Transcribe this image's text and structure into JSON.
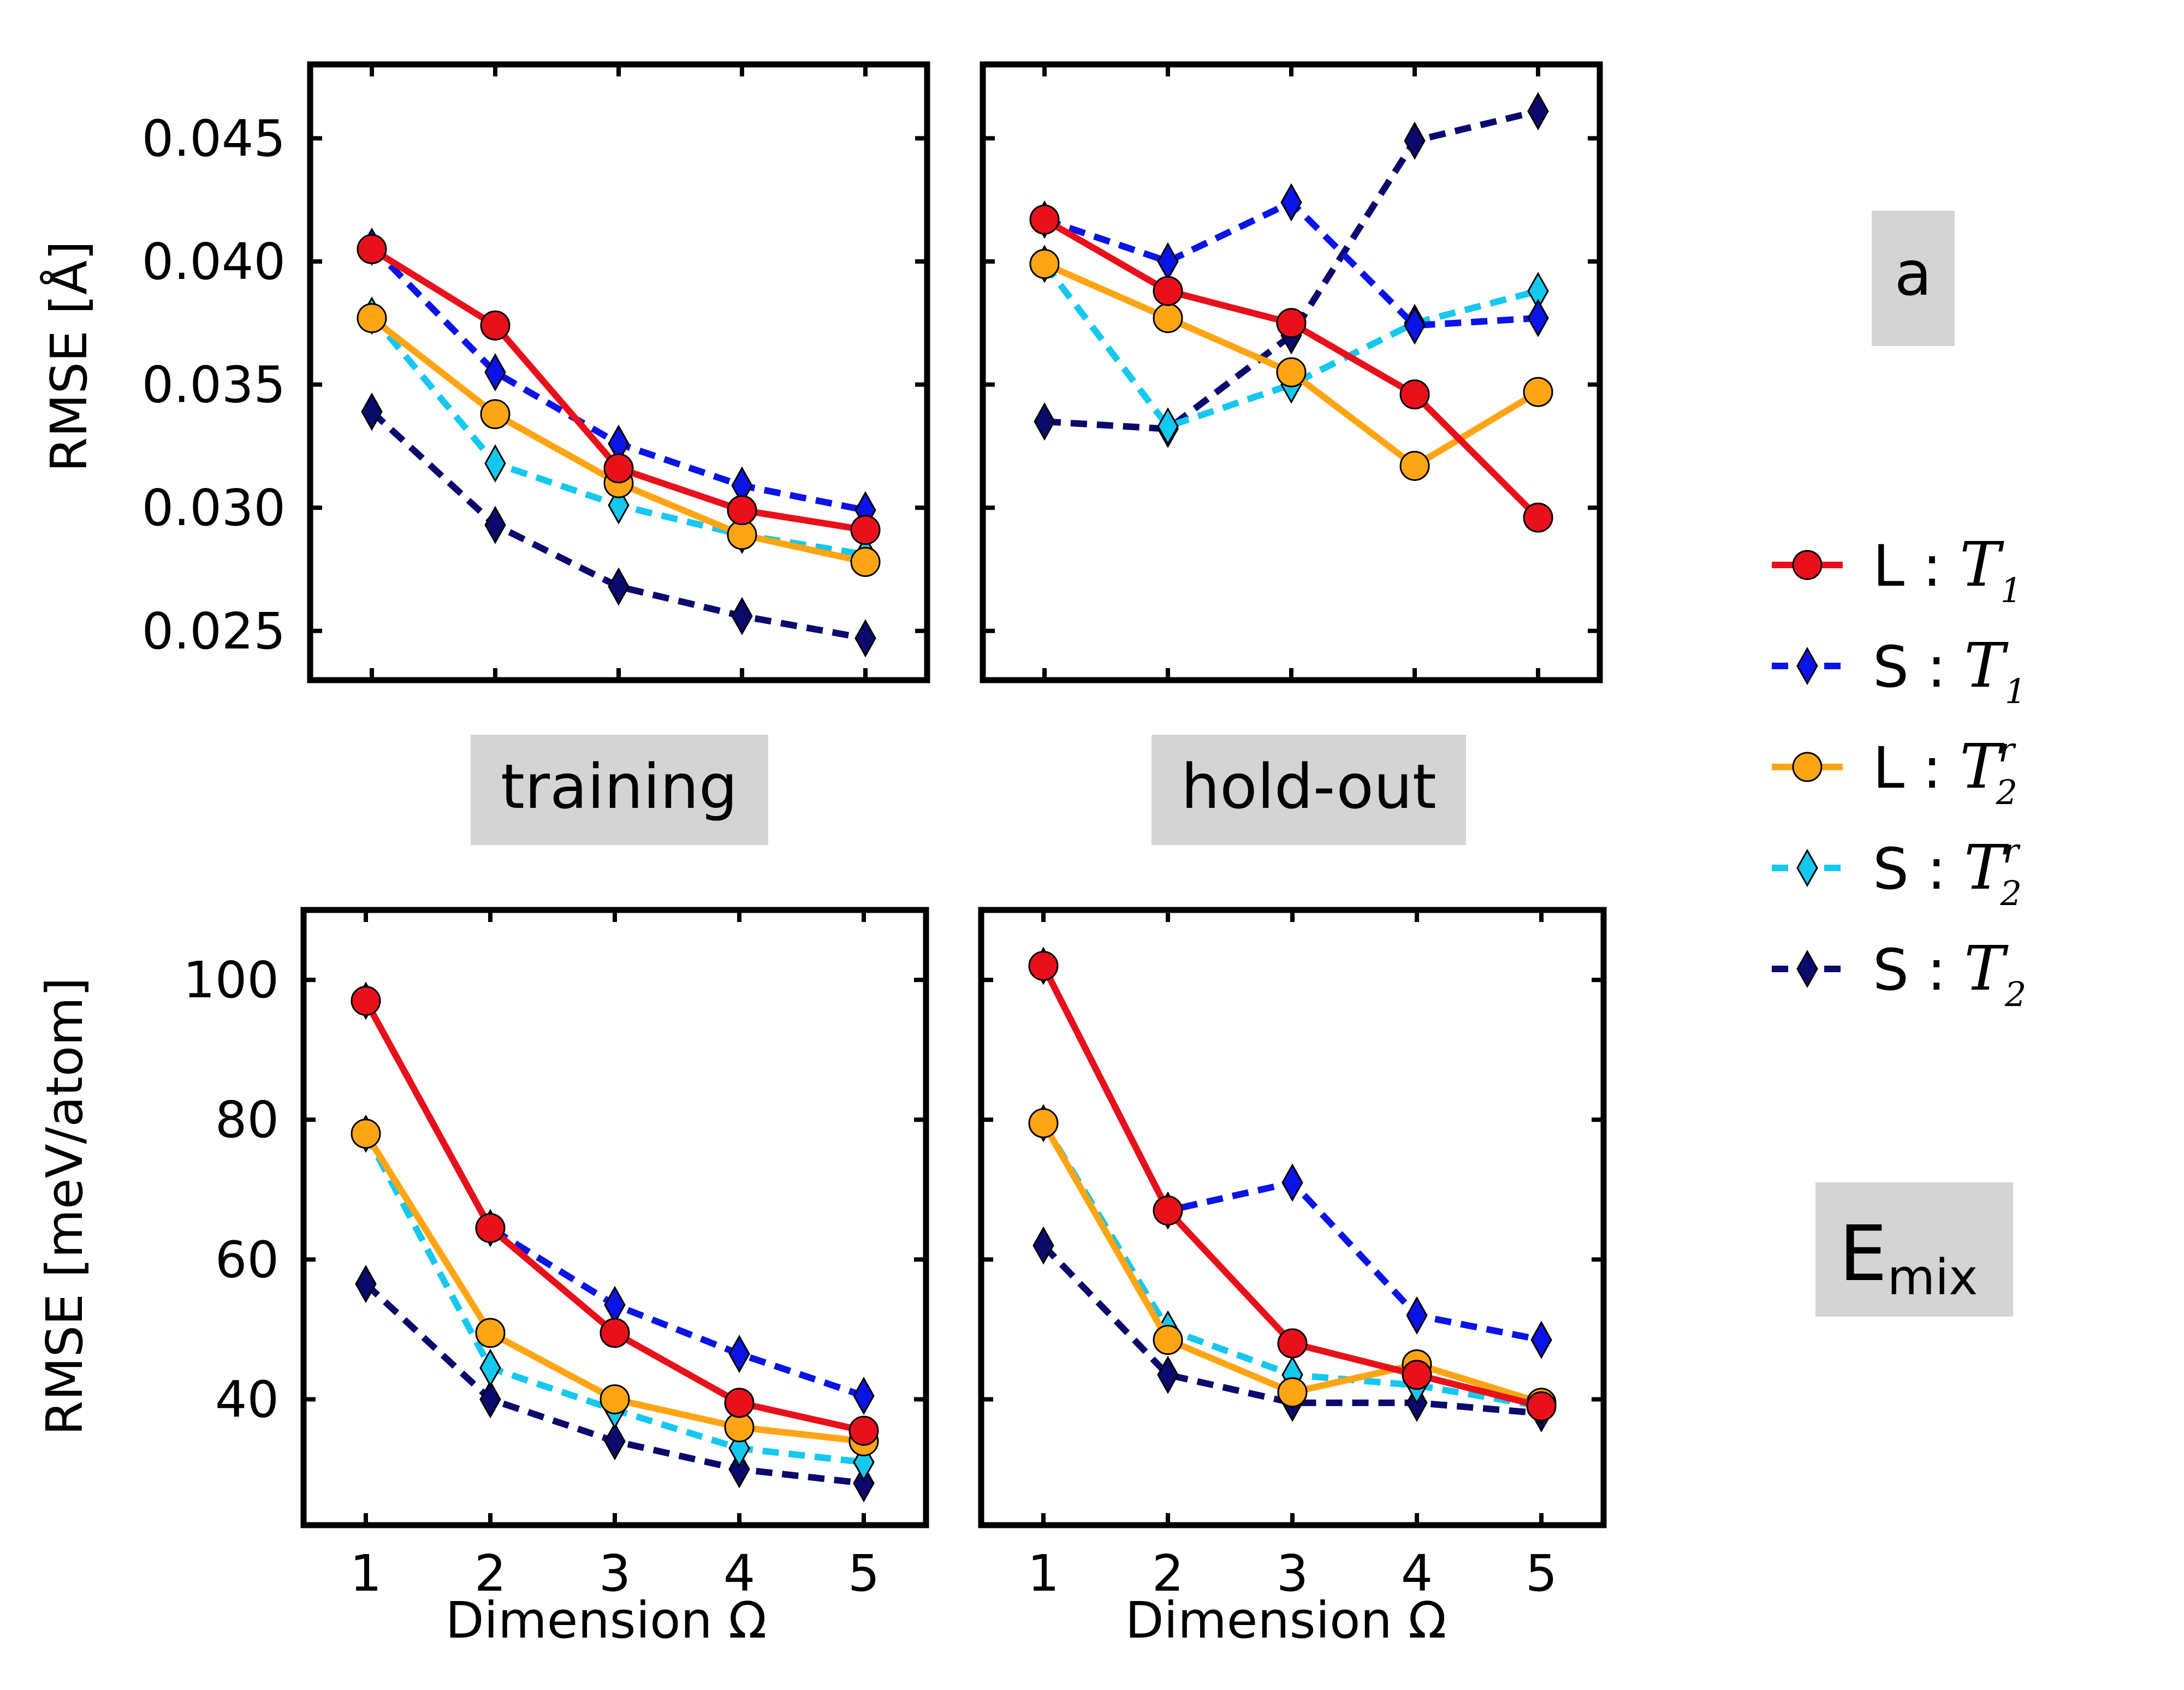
{
  "panel_labels": {
    "lattice": "a",
    "mixing": {
      "main": "E",
      "sub": "mix"
    },
    "training": "training",
    "holdout": "hold-out"
  },
  "colors": {
    "L_T1": "#e8101a",
    "S_T1": "#0a14e6",
    "L_T2r": "#ffa514",
    "S_T2r": "#14c8f0",
    "S_T2": "#0a0a6e",
    "label_bg": "#d4d4d4"
  },
  "legend": [
    {
      "key": "L_T1",
      "prefix": "L",
      "sep": ":",
      "symbol": "T",
      "sub": "1",
      "sup": "",
      "marker": "circle",
      "dashed": false
    },
    {
      "key": "S_T1",
      "prefix": "S",
      "sep": ":",
      "symbol": "T",
      "sub": "1",
      "sup": "",
      "marker": "diamond",
      "dashed": true
    },
    {
      "key": "L_T2r",
      "prefix": "L",
      "sep": ":",
      "symbol": "T",
      "sub": "2",
      "sup": "r",
      "marker": "circle",
      "dashed": false
    },
    {
      "key": "S_T2r",
      "prefix": "S",
      "sep": ":",
      "symbol": "T",
      "sub": "2",
      "sup": "r",
      "marker": "diamond",
      "dashed": true
    },
    {
      "key": "S_T2",
      "prefix": "S",
      "sep": ":",
      "symbol": "T",
      "sub": "2",
      "sup": "",
      "marker": "diamond",
      "dashed": true
    }
  ],
  "chart_data": [
    {
      "id": "lattice-training",
      "type": "line",
      "ylabel": "RMSE [Å]",
      "xlabel": "",
      "x": [
        1,
        2,
        3,
        4,
        5
      ],
      "xlim": [
        0.5,
        5.5
      ],
      "ylim": [
        0.023,
        0.048
      ],
      "yticks": [
        "0.025",
        "0.030",
        "0.035",
        "0.040",
        "0.045"
      ],
      "ytick_values": [
        0.025,
        0.03,
        0.035,
        0.04,
        0.045
      ],
      "show_yticklabels": true,
      "show_xticklabels": false,
      "series": [
        {
          "key": "L_T1",
          "values": [
            0.0405,
            0.0374,
            0.0316,
            0.0299,
            0.0291
          ]
        },
        {
          "key": "S_T1",
          "values": [
            0.0406,
            0.0355,
            0.0326,
            0.0309,
            0.0299
          ]
        },
        {
          "key": "L_T2r",
          "values": [
            0.0377,
            0.0338,
            0.031,
            0.0289,
            0.0278
          ]
        },
        {
          "key": "S_T2r",
          "values": [
            0.0378,
            0.0318,
            0.0301,
            0.0289,
            0.0281
          ]
        },
        {
          "key": "S_T2",
          "values": [
            0.0339,
            0.0293,
            0.0268,
            0.0256,
            0.0247
          ]
        }
      ]
    },
    {
      "id": "lattice-holdout",
      "type": "line",
      "ylabel": "",
      "xlabel": "",
      "x": [
        1,
        2,
        3,
        4,
        5
      ],
      "xlim": [
        0.5,
        5.5
      ],
      "ylim": [
        0.023,
        0.048
      ],
      "yticks": [
        "0.025",
        "0.030",
        "0.035",
        "0.040",
        "0.045"
      ],
      "ytick_values": [
        0.025,
        0.03,
        0.035,
        0.04,
        0.045
      ],
      "show_yticklabels": false,
      "show_xticklabels": false,
      "series": [
        {
          "key": "L_T1",
          "values": [
            0.0417,
            0.0388,
            0.0375,
            0.0346,
            0.0296
          ]
        },
        {
          "key": "S_T1",
          "values": [
            0.0417,
            0.04,
            0.0424,
            0.0374,
            0.0377
          ]
        },
        {
          "key": "L_T2r",
          "values": [
            0.0399,
            0.0377,
            0.0355,
            0.0317,
            0.0347
          ]
        },
        {
          "key": "S_T2r",
          "values": [
            0.0399,
            0.0333,
            0.035,
            0.0375,
            0.0388
          ]
        },
        {
          "key": "S_T2",
          "values": [
            0.0335,
            0.0332,
            0.037,
            0.0449,
            0.0461
          ]
        }
      ]
    },
    {
      "id": "emix-training",
      "type": "line",
      "ylabel": "RMSE [meV/atom]",
      "xlabel": "Dimension Ω",
      "x": [
        1,
        2,
        3,
        4,
        5
      ],
      "xlim": [
        0.5,
        5.5
      ],
      "ylim": [
        22,
        110
      ],
      "yticks": [
        "40",
        "60",
        "80",
        "100"
      ],
      "ytick_values": [
        40,
        60,
        80,
        100
      ],
      "xticks": [
        "1",
        "2",
        "3",
        "4",
        "5"
      ],
      "show_yticklabels": true,
      "show_xticklabels": true,
      "series": [
        {
          "key": "L_T1",
          "values": [
            97,
            64.5,
            49.5,
            39.5,
            35.5
          ]
        },
        {
          "key": "S_T1",
          "values": [
            97,
            64.5,
            53.5,
            46.5,
            40.5
          ]
        },
        {
          "key": "L_T2r",
          "values": [
            78,
            49.5,
            40,
            36,
            34
          ]
        },
        {
          "key": "S_T2r",
          "values": [
            78,
            44.5,
            38.5,
            33,
            31
          ]
        },
        {
          "key": "S_T2",
          "values": [
            56.5,
            40,
            34,
            30,
            28
          ]
        }
      ]
    },
    {
      "id": "emix-holdout",
      "type": "line",
      "ylabel": "",
      "xlabel": "Dimension Ω",
      "x": [
        1,
        2,
        3,
        4,
        5
      ],
      "xlim": [
        0.5,
        5.5
      ],
      "ylim": [
        22,
        110
      ],
      "yticks": [
        "40",
        "60",
        "80",
        "100"
      ],
      "ytick_values": [
        40,
        60,
        80,
        100
      ],
      "xticks": [
        "1",
        "2",
        "3",
        "4",
        "5"
      ],
      "show_yticklabels": false,
      "show_xticklabels": true,
      "series": [
        {
          "key": "L_T1",
          "values": [
            102,
            67,
            48,
            43.5,
            39
          ]
        },
        {
          "key": "S_T1",
          "values": [
            102,
            67,
            71,
            52,
            48.5
          ]
        },
        {
          "key": "L_T2r",
          "values": [
            79.5,
            48.5,
            41,
            45,
            39.5
          ]
        },
        {
          "key": "S_T2r",
          "values": [
            79.5,
            50,
            43.5,
            42,
            39
          ]
        },
        {
          "key": "S_T2",
          "values": [
            62,
            43.5,
            39.5,
            39.5,
            38
          ]
        }
      ]
    }
  ]
}
